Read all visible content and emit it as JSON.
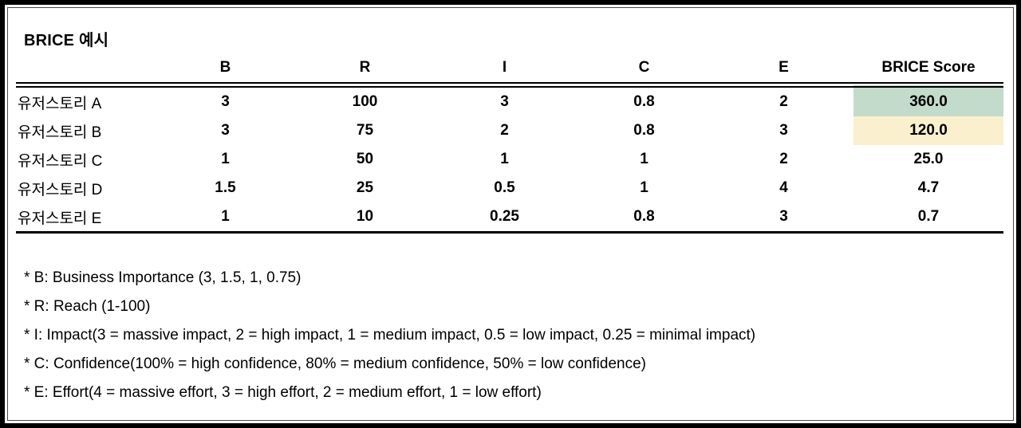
{
  "title": "BRICE 예시",
  "table": {
    "corner_label": "",
    "columns": [
      "B",
      "R",
      "I",
      "C",
      "E",
      "BRICE Score"
    ],
    "rows": [
      {
        "label": "유저스토리 A",
        "B": "3",
        "R": "100",
        "I": "3",
        "C": "0.8",
        "E": "2",
        "score": "360.0",
        "highlight": "green"
      },
      {
        "label": "유저스토리 B",
        "B": "3",
        "R": "75",
        "I": "2",
        "C": "0.8",
        "E": "3",
        "score": "120.0",
        "highlight": "yellow"
      },
      {
        "label": "유저스토리 C",
        "B": "1",
        "R": "50",
        "I": "1",
        "C": "1",
        "E": "2",
        "score": "25.0",
        "highlight": "none"
      },
      {
        "label": "유저스토리 D",
        "B": "1.5",
        "R": "25",
        "I": "0.5",
        "C": "1",
        "E": "4",
        "score": "4.7",
        "highlight": "none"
      },
      {
        "label": "유저스토리 E",
        "B": "1",
        "R": "10",
        "I": "0.25",
        "C": "0.8",
        "E": "3",
        "score": "0.7",
        "highlight": "none"
      }
    ]
  },
  "footnotes": [
    "* B: Business Importance (3, 1.5, 1, 0.75)",
    "* R: Reach (1-100)",
    "* I: Impact(3 = massive impact, 2 = high impact, 1 = medium impact, 0.5 = low impact, 0.25 = minimal impact)",
    "* C: Confidence(100% = high confidence, 80% = medium confidence, 50% = low confidence)",
    "* E: Effort(4 = massive effort, 3 = high effort, 2 = medium effort, 1 = low effort)"
  ],
  "colors": {
    "score_highlight_green": "#c3dbca",
    "score_highlight_yellow": "#faf0ce",
    "text": "#000000",
    "background": "#ffffff",
    "frame_border": "#000000"
  }
}
